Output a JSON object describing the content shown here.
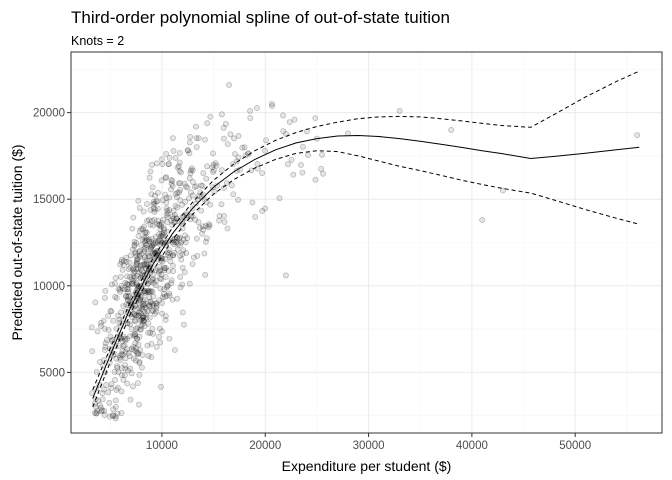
{
  "chart_data": {
    "type": "scatter",
    "title": "Third-order polynomial spline of out-of-state tuition",
    "subtitle": "Knots = 2",
    "xlabel": "Expenditure per student ($)",
    "ylabel": "Predicted out-of-state tuition ($)",
    "xlim": [
      1200,
      58400
    ],
    "ylim": [
      1500,
      23500
    ],
    "xticks": [
      10000,
      20000,
      30000,
      40000,
      50000
    ],
    "yticks": [
      5000,
      10000,
      15000,
      20000
    ],
    "xtick_labels": [
      "10000",
      "20000",
      "30000",
      "40000",
      "50000"
    ],
    "ytick_labels": [
      "5000",
      "10000",
      "15000",
      "20000"
    ],
    "grid": true,
    "points": {
      "count": 800,
      "x_sample": [
        3200,
        3500,
        4000,
        4500,
        5000,
        5500,
        6000,
        6500,
        7000,
        7500,
        8000,
        8500,
        9000,
        9500,
        10000,
        10500,
        11000,
        12000,
        13000,
        14000,
        15000,
        16000,
        16500,
        18000,
        20000,
        22000,
        25000,
        28000,
        33000,
        38000,
        41000,
        43000,
        56000
      ],
      "y_sample": [
        7600,
        3200,
        5600,
        5000,
        6000,
        6500,
        7000,
        8500,
        9000,
        9500,
        10000,
        11000,
        11500,
        12000,
        13000,
        12500,
        13500,
        14000,
        16000,
        16500,
        17000,
        18500,
        21600,
        18000,
        17800,
        10600,
        18500,
        18800,
        20100,
        19000,
        13800,
        15500,
        18700
      ]
    },
    "series": [
      {
        "style": "solid",
        "x": [
          3300,
          5000,
          7000,
          9000,
          11000,
          13000,
          15000,
          17000,
          19000,
          21000,
          23000,
          25000,
          27000,
          29000,
          31000,
          33000,
          35000,
          37000,
          39000,
          41000,
          43000,
          45700,
          48000,
          51000,
          54000,
          56200
        ],
        "y": [
          3500,
          6000,
          8800,
          11100,
          13000,
          14500,
          15700,
          16600,
          17300,
          17850,
          18250,
          18500,
          18650,
          18680,
          18620,
          18500,
          18350,
          18170,
          17990,
          17800,
          17620,
          17350,
          17470,
          17650,
          17850,
          18000
        ]
      },
      {
        "style": "dashed",
        "x": [
          3300,
          5000,
          7000,
          9000,
          11000,
          13000,
          15000,
          17000,
          19000,
          21000,
          23000,
          25000,
          27000,
          29000,
          31000,
          33000,
          35000,
          37000,
          39000,
          41000,
          43000,
          45700,
          48000,
          51000,
          54000,
          56200
        ],
        "y": [
          4000,
          6400,
          9150,
          11450,
          13350,
          14850,
          16100,
          17050,
          17800,
          18400,
          18850,
          19200,
          19450,
          19650,
          19750,
          19780,
          19750,
          19650,
          19520,
          19380,
          19250,
          19150,
          19900,
          20900,
          21800,
          22400
        ]
      },
      {
        "style": "dashed",
        "x": [
          3300,
          5000,
          7000,
          9000,
          11000,
          13000,
          15000,
          17000,
          19000,
          21000,
          23000,
          25000,
          27000,
          29000,
          31000,
          33000,
          35000,
          37000,
          39000,
          41000,
          43000,
          45700,
          48000,
          51000,
          54000,
          56200
        ],
        "y": [
          3000,
          5600,
          8450,
          10750,
          12650,
          14150,
          15300,
          16150,
          16800,
          17300,
          17650,
          17800,
          17750,
          17500,
          17200,
          16900,
          16650,
          16380,
          16100,
          15850,
          15620,
          15350,
          14950,
          14400,
          13900,
          13550
        ]
      }
    ]
  }
}
